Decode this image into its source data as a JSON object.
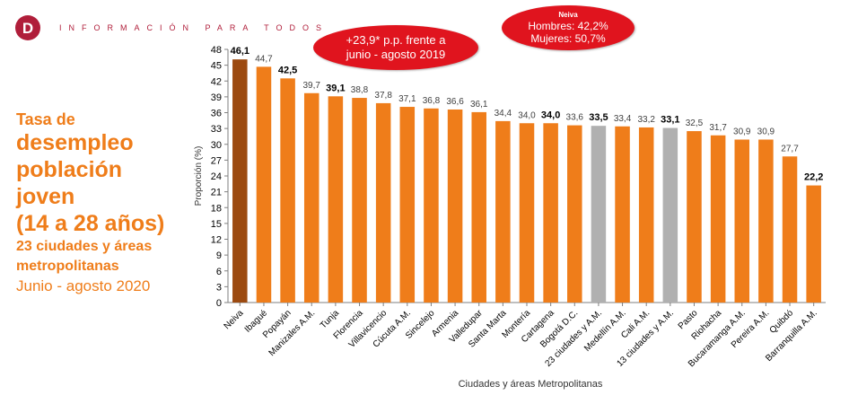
{
  "header": {
    "logo_letter": "D",
    "title": "INFORMACIÓN PARA TODOS"
  },
  "side_title": {
    "line1": "Tasa de",
    "line2": "desempleo",
    "line3": "población",
    "line4": "joven",
    "line5": "(14 a 28 años)",
    "line6": "23 ciudades y áreas",
    "line7": "metropolitanas",
    "line8": "Junio - agosto 2020"
  },
  "callouts": {
    "change_line1": "+23,9* p.p. frente a",
    "change_line2": "junio - agosto 2019",
    "neiva_title": "Neiva",
    "neiva_men": "Hombres: 42,2%",
    "neiva_women": "Mujeres: 50,7%"
  },
  "colors": {
    "highlight": "#9c4a10",
    "default": "#ef7d1a",
    "aggregate": "#b0b0b0",
    "accent": "#b01e3a",
    "callout": "#e0141e"
  },
  "chart_data": {
    "type": "bar",
    "xlabel": "Ciudades y áreas Metropolitanas",
    "ylabel": "Proporción (%)",
    "ylim": [
      0,
      48
    ],
    "yticks": [
      0,
      3,
      6,
      9,
      12,
      15,
      18,
      21,
      24,
      27,
      30,
      33,
      36,
      39,
      42,
      45,
      48
    ],
    "categories": [
      "Neiva",
      "Ibagué",
      "Popayán",
      "Manizales A.M.",
      "Tunja",
      "Florencia",
      "Villavicencio",
      "Cúcuta A.M.",
      "Sincelejo",
      "Armenia",
      "Valledupar",
      "Santa Marta",
      "Montería",
      "Cartagena",
      "Bogotá D.C.",
      "23 ciudades y A.M.",
      "Medellín A.M.",
      "Cali A.M.",
      "13 ciudades y A.M.",
      "Pasto",
      "Riohacha",
      "Bucaramanga A.M.",
      "Pereira A.M.",
      "Quibdó",
      "Barranquilla A.M."
    ],
    "values": [
      46.1,
      44.7,
      42.5,
      39.7,
      39.1,
      38.8,
      37.8,
      37.1,
      36.8,
      36.6,
      36.1,
      34.4,
      34.0,
      34.0,
      33.6,
      33.5,
      33.4,
      33.2,
      33.1,
      32.5,
      31.7,
      30.9,
      30.9,
      27.7,
      22.2
    ],
    "value_labels": [
      "46,1",
      "44,7",
      "42,5",
      "39,7",
      "39,1",
      "38,8",
      "37,8",
      "37,1",
      "36,8",
      "36,6",
      "36,1",
      "34,4",
      "34,0",
      "34,0",
      "33,6",
      "33,5",
      "33,4",
      "33,2",
      "33,1",
      "32,5",
      "31,7",
      "30,9",
      "30,9",
      "27,7",
      "22,2"
    ],
    "bold_labels": [
      true,
      false,
      true,
      false,
      true,
      false,
      false,
      false,
      false,
      false,
      false,
      false,
      false,
      true,
      false,
      true,
      false,
      false,
      true,
      false,
      false,
      false,
      false,
      false,
      true
    ],
    "bar_kind": [
      "highlight",
      "default",
      "default",
      "default",
      "default",
      "default",
      "default",
      "default",
      "default",
      "default",
      "default",
      "default",
      "default",
      "default",
      "default",
      "aggregate",
      "default",
      "default",
      "aggregate",
      "default",
      "default",
      "default",
      "default",
      "default",
      "default"
    ],
    "grid": false
  }
}
